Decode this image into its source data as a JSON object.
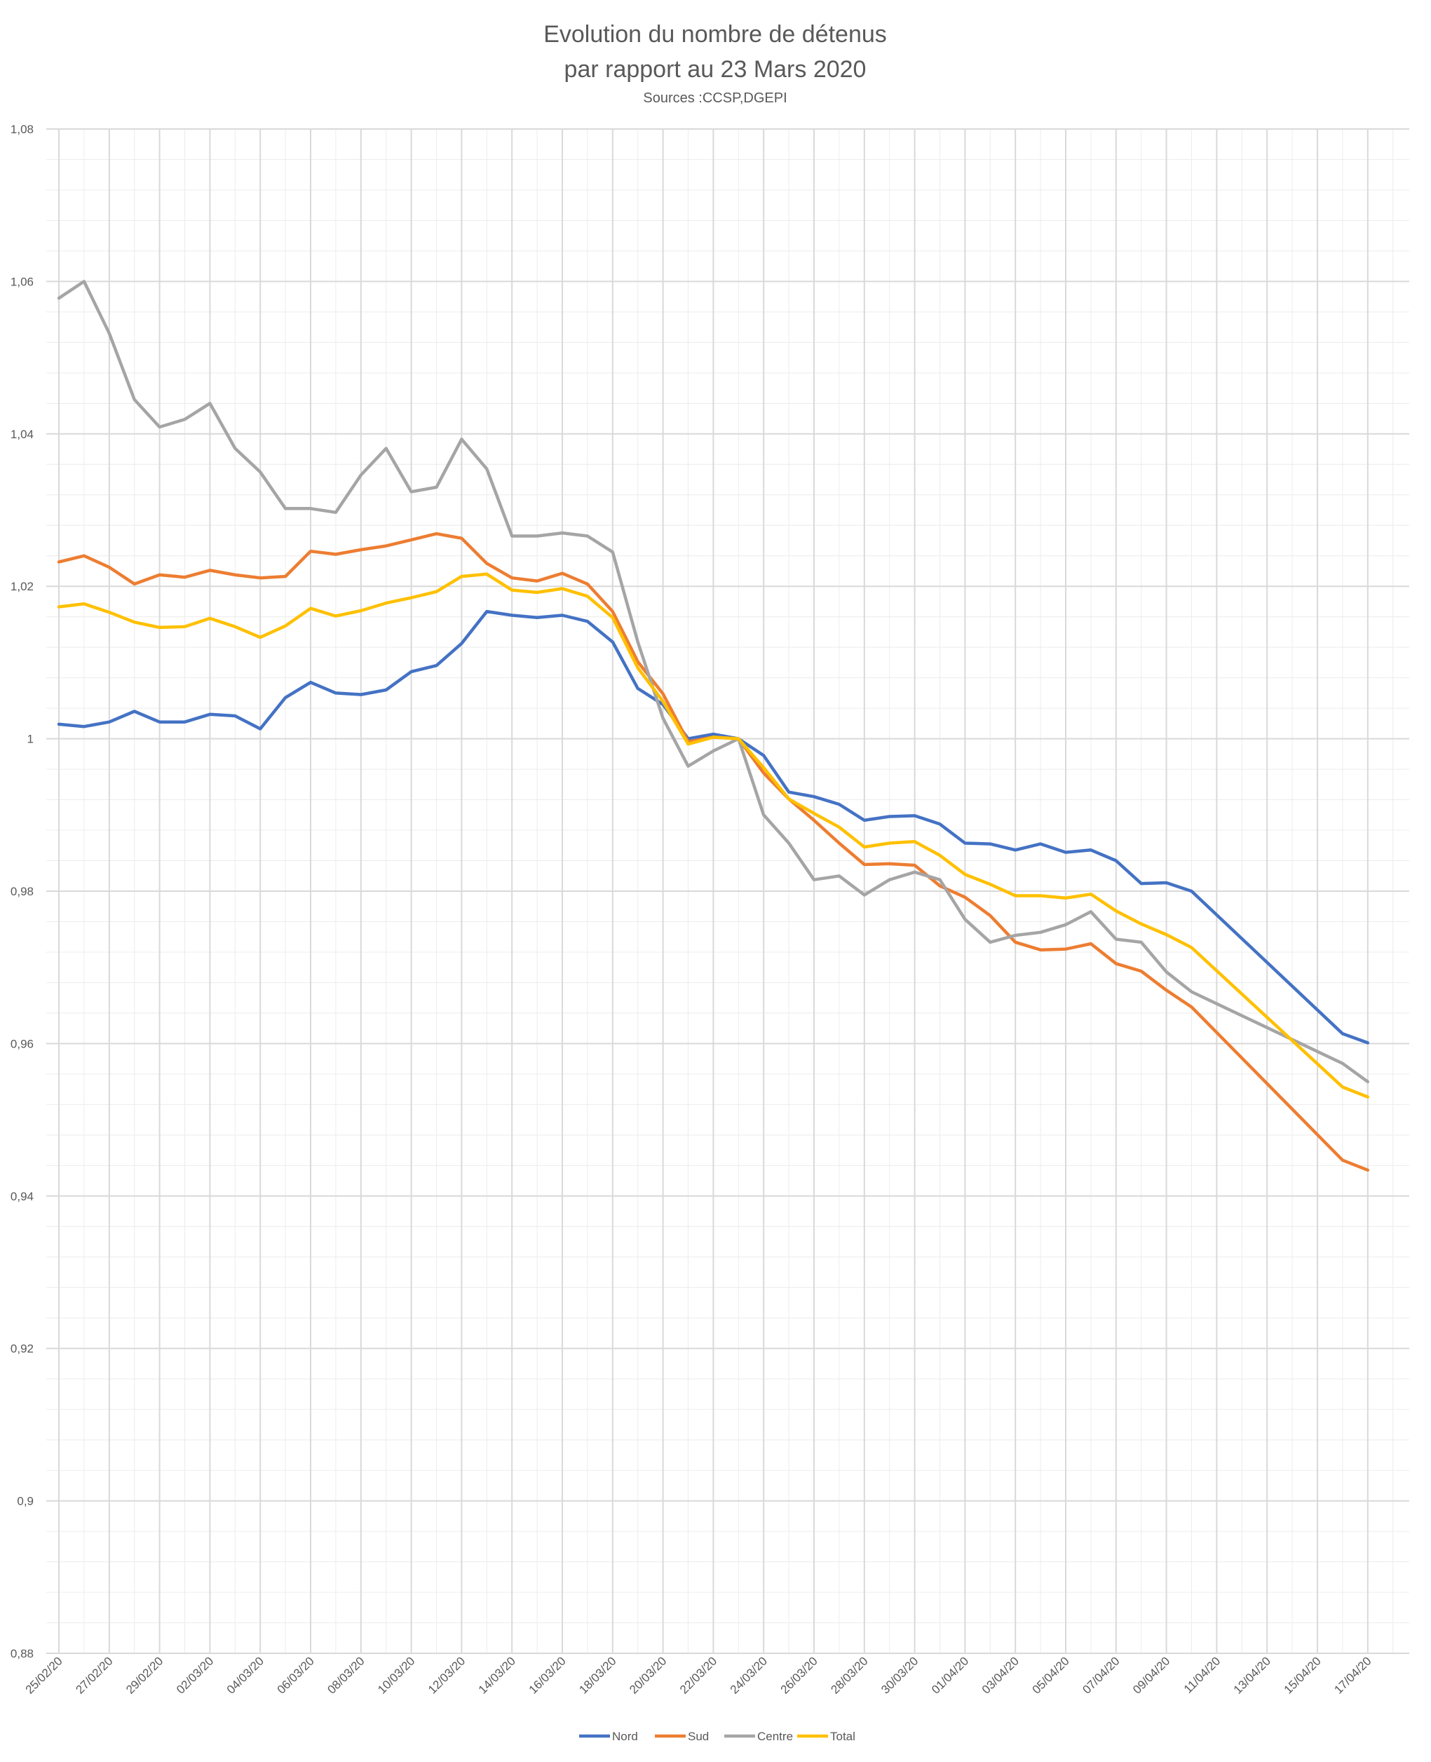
{
  "chart_data": {
    "type": "line",
    "title": "Evolution du nombre de détenus",
    "title_line2": "par rapport au 23 Mars 2020",
    "subtitle": "Sources :CCSP,DGEPI",
    "xlabel": "",
    "ylabel": "",
    "ylim": [
      0.88,
      1.08
    ],
    "y_ticks": [
      "0,88",
      "0,9",
      "0,92",
      "0,94",
      "0,96",
      "0,98",
      "1",
      "1,02",
      "1,04",
      "1,06",
      "1,08"
    ],
    "x_tick_labels": [
      "25/02/20",
      "27/02/20",
      "29/02/20",
      "02/03/20",
      "04/03/20",
      "06/03/20",
      "08/03/20",
      "10/03/20",
      "12/03/20",
      "14/03/20",
      "16/03/20",
      "18/03/20",
      "20/03/20",
      "22/03/20",
      "24/03/20",
      "26/03/20",
      "28/03/20",
      "30/03/20",
      "01/04/20",
      "03/04/20",
      "05/04/20",
      "07/04/20",
      "09/04/20",
      "11/04/20",
      "13/04/20",
      "15/04/20",
      "17/04/20"
    ],
    "grid": true,
    "legend_position": "bottom",
    "series": [
      {
        "name": "Nord",
        "color": "#4472C4",
        "points": [
          [
            "25/02/20",
            1.0019
          ],
          [
            "26/02/20",
            1.0016
          ],
          [
            "27/02/20",
            1.0022
          ],
          [
            "28/02/20",
            1.0036
          ],
          [
            "29/02/20",
            1.0022
          ],
          [
            "01/03/20",
            1.0022
          ],
          [
            "02/03/20",
            1.0032
          ],
          [
            "03/03/20",
            1.003
          ],
          [
            "04/03/20",
            1.0013
          ],
          [
            "05/03/20",
            1.0054
          ],
          [
            "06/03/20",
            1.0074
          ],
          [
            "07/03/20",
            1.006
          ],
          [
            "08/03/20",
            1.0058
          ],
          [
            "09/03/20",
            1.0064
          ],
          [
            "10/03/20",
            1.0088
          ],
          [
            "11/03/20",
            1.0096
          ],
          [
            "12/03/20",
            1.0125
          ],
          [
            "13/03/20",
            1.0167
          ],
          [
            "14/03/20",
            1.0162
          ],
          [
            "15/03/20",
            1.0159
          ],
          [
            "16/03/20",
            1.0162
          ],
          [
            "17/03/20",
            1.0154
          ],
          [
            "18/03/20",
            1.0127
          ],
          [
            "19/03/20",
            1.0066
          ],
          [
            "20/03/20",
            1.0045
          ],
          [
            "21/03/20",
            1.0
          ],
          [
            "22/03/20",
            1.0006
          ],
          [
            "23/03/20",
            1.0
          ],
          [
            "24/03/20",
            0.9978
          ],
          [
            "25/03/20",
            0.993
          ],
          [
            "26/03/20",
            0.9924
          ],
          [
            "27/03/20",
            0.9914
          ],
          [
            "28/03/20",
            0.9893
          ],
          [
            "29/03/20",
            0.9898
          ],
          [
            "30/03/20",
            0.9899
          ],
          [
            "31/03/20",
            0.9888
          ],
          [
            "01/04/20",
            0.9863
          ],
          [
            "02/04/20",
            0.9862
          ],
          [
            "03/04/20",
            0.9854
          ],
          [
            "04/04/20",
            0.9862
          ],
          [
            "05/04/20",
            0.9851
          ],
          [
            "06/04/20",
            0.9854
          ],
          [
            "07/04/20",
            0.984
          ],
          [
            "08/04/20",
            0.981
          ],
          [
            "09/04/20",
            0.9811
          ],
          [
            "10/04/20",
            0.98
          ],
          [
            "16/04/20",
            0.9613
          ],
          [
            "17/04/20",
            0.9601
          ]
        ]
      },
      {
        "name": "Sud",
        "color": "#ED7D31",
        "points": [
          [
            "25/02/20",
            1.0232
          ],
          [
            "26/02/20",
            1.024
          ],
          [
            "27/02/20",
            1.0225
          ],
          [
            "28/02/20",
            1.0203
          ],
          [
            "29/02/20",
            1.0215
          ],
          [
            "01/03/20",
            1.0212
          ],
          [
            "02/03/20",
            1.0221
          ],
          [
            "03/03/20",
            1.0215
          ],
          [
            "04/03/20",
            1.0211
          ],
          [
            "05/03/20",
            1.0213
          ],
          [
            "06/03/20",
            1.0246
          ],
          [
            "07/03/20",
            1.0242
          ],
          [
            "08/03/20",
            1.0248
          ],
          [
            "09/03/20",
            1.0253
          ],
          [
            "10/03/20",
            1.0261
          ],
          [
            "11/03/20",
            1.0269
          ],
          [
            "12/03/20",
            1.0263
          ],
          [
            "13/03/20",
            1.023
          ],
          [
            "14/03/20",
            1.0211
          ],
          [
            "15/03/20",
            1.0207
          ],
          [
            "16/03/20",
            1.0217
          ],
          [
            "17/03/20",
            1.0203
          ],
          [
            "18/03/20",
            1.0167
          ],
          [
            "19/03/20",
            1.0101
          ],
          [
            "20/03/20",
            1.0059
          ],
          [
            "21/03/20",
            0.9996
          ],
          [
            "22/03/20",
            1.0002
          ],
          [
            "23/03/20",
            1.0
          ],
          [
            "24/03/20",
            0.9955
          ],
          [
            "25/03/20",
            0.9921
          ],
          [
            "26/03/20",
            0.9893
          ],
          [
            "27/03/20",
            0.9863
          ],
          [
            "28/03/20",
            0.9835
          ],
          [
            "29/03/20",
            0.9836
          ],
          [
            "30/03/20",
            0.9834
          ],
          [
            "31/03/20",
            0.9807
          ],
          [
            "01/04/20",
            0.9792
          ],
          [
            "02/04/20",
            0.9768
          ],
          [
            "03/04/20",
            0.9733
          ],
          [
            "04/04/20",
            0.9723
          ],
          [
            "05/04/20",
            0.9724
          ],
          [
            "06/04/20",
            0.9731
          ],
          [
            "07/04/20",
            0.9705
          ],
          [
            "08/04/20",
            0.9695
          ],
          [
            "09/04/20",
            0.967
          ],
          [
            "10/04/20",
            0.9648
          ],
          [
            "16/04/20",
            0.9447
          ],
          [
            "17/04/20",
            0.9434
          ]
        ]
      },
      {
        "name": "Centre",
        "color": "#A5A5A5",
        "points": [
          [
            "25/02/20",
            1.0578
          ],
          [
            "26/02/20",
            1.06
          ],
          [
            "27/02/20",
            1.0532
          ],
          [
            "28/02/20",
            1.0445
          ],
          [
            "29/02/20",
            1.0409
          ],
          [
            "01/03/20",
            1.0419
          ],
          [
            "02/03/20",
            1.044
          ],
          [
            "03/03/20",
            1.0381
          ],
          [
            "04/03/20",
            1.035
          ],
          [
            "05/03/20",
            1.0302
          ],
          [
            "06/03/20",
            1.0302
          ],
          [
            "07/03/20",
            1.0297
          ],
          [
            "08/03/20",
            1.0346
          ],
          [
            "09/03/20",
            1.0381
          ],
          [
            "10/03/20",
            1.0324
          ],
          [
            "11/03/20",
            1.033
          ],
          [
            "12/03/20",
            1.0393
          ],
          [
            "13/03/20",
            1.0354
          ],
          [
            "14/03/20",
            1.0266
          ],
          [
            "15/03/20",
            1.0266
          ],
          [
            "16/03/20",
            1.027
          ],
          [
            "17/03/20",
            1.0266
          ],
          [
            "18/03/20",
            1.0245
          ],
          [
            "19/03/20",
            1.0127
          ],
          [
            "20/03/20",
            1.0027
          ],
          [
            "21/03/20",
            0.9964
          ],
          [
            "22/03/20",
            0.9984
          ],
          [
            "23/03/20",
            1.0
          ],
          [
            "24/03/20",
            0.99
          ],
          [
            "25/03/20",
            0.9863
          ],
          [
            "26/03/20",
            0.9815
          ],
          [
            "27/03/20",
            0.982
          ],
          [
            "28/03/20",
            0.9795
          ],
          [
            "29/03/20",
            0.9815
          ],
          [
            "30/03/20",
            0.9825
          ],
          [
            "31/03/20",
            0.9815
          ],
          [
            "01/04/20",
            0.9763
          ],
          [
            "02/04/20",
            0.9733
          ],
          [
            "03/04/20",
            0.9742
          ],
          [
            "04/04/20",
            0.9746
          ],
          [
            "05/04/20",
            0.9756
          ],
          [
            "06/04/20",
            0.9773
          ],
          [
            "07/04/20",
            0.9737
          ],
          [
            "08/04/20",
            0.9733
          ],
          [
            "09/04/20",
            0.9694
          ],
          [
            "10/04/20",
            0.9668
          ],
          [
            "16/04/20",
            0.9574
          ],
          [
            "17/04/20",
            0.955
          ]
        ]
      },
      {
        "name": "Total",
        "color": "#FFC000",
        "points": [
          [
            "25/02/20",
            1.0173
          ],
          [
            "26/02/20",
            1.0177
          ],
          [
            "27/02/20",
            1.0166
          ],
          [
            "28/02/20",
            1.0153
          ],
          [
            "29/02/20",
            1.0146
          ],
          [
            "01/03/20",
            1.0147
          ],
          [
            "02/03/20",
            1.0158
          ],
          [
            "03/03/20",
            1.0147
          ],
          [
            "04/03/20",
            1.0133
          ],
          [
            "05/03/20",
            1.0148
          ],
          [
            "06/03/20",
            1.0171
          ],
          [
            "07/03/20",
            1.0161
          ],
          [
            "08/03/20",
            1.0168
          ],
          [
            "09/03/20",
            1.0178
          ],
          [
            "10/03/20",
            1.0185
          ],
          [
            "11/03/20",
            1.0193
          ],
          [
            "12/03/20",
            1.0213
          ],
          [
            "13/03/20",
            1.0216
          ],
          [
            "14/03/20",
            1.0195
          ],
          [
            "15/03/20",
            1.0192
          ],
          [
            "16/03/20",
            1.0197
          ],
          [
            "17/03/20",
            1.0187
          ],
          [
            "18/03/20",
            1.0159
          ],
          [
            "19/03/20",
            1.0093
          ],
          [
            "20/03/20",
            1.0049
          ],
          [
            "21/03/20",
            0.9993
          ],
          [
            "22/03/20",
            1.0002
          ],
          [
            "23/03/20",
            1.0
          ],
          [
            "24/03/20",
            0.9962
          ],
          [
            "25/03/20",
            0.9921
          ],
          [
            "26/03/20",
            0.9902
          ],
          [
            "27/03/20",
            0.9884
          ],
          [
            "28/03/20",
            0.9858
          ],
          [
            "29/03/20",
            0.9863
          ],
          [
            "30/03/20",
            0.9865
          ],
          [
            "31/03/20",
            0.9847
          ],
          [
            "01/04/20",
            0.9822
          ],
          [
            "02/04/20",
            0.9809
          ],
          [
            "03/04/20",
            0.9794
          ],
          [
            "04/04/20",
            0.9794
          ],
          [
            "05/04/20",
            0.9791
          ],
          [
            "06/04/20",
            0.9796
          ],
          [
            "07/04/20",
            0.9774
          ],
          [
            "08/04/20",
            0.9757
          ],
          [
            "09/04/20",
            0.9743
          ],
          [
            "10/04/20",
            0.9726
          ],
          [
            "16/04/20",
            0.9543
          ],
          [
            "17/04/20",
            0.953
          ]
        ]
      }
    ]
  }
}
